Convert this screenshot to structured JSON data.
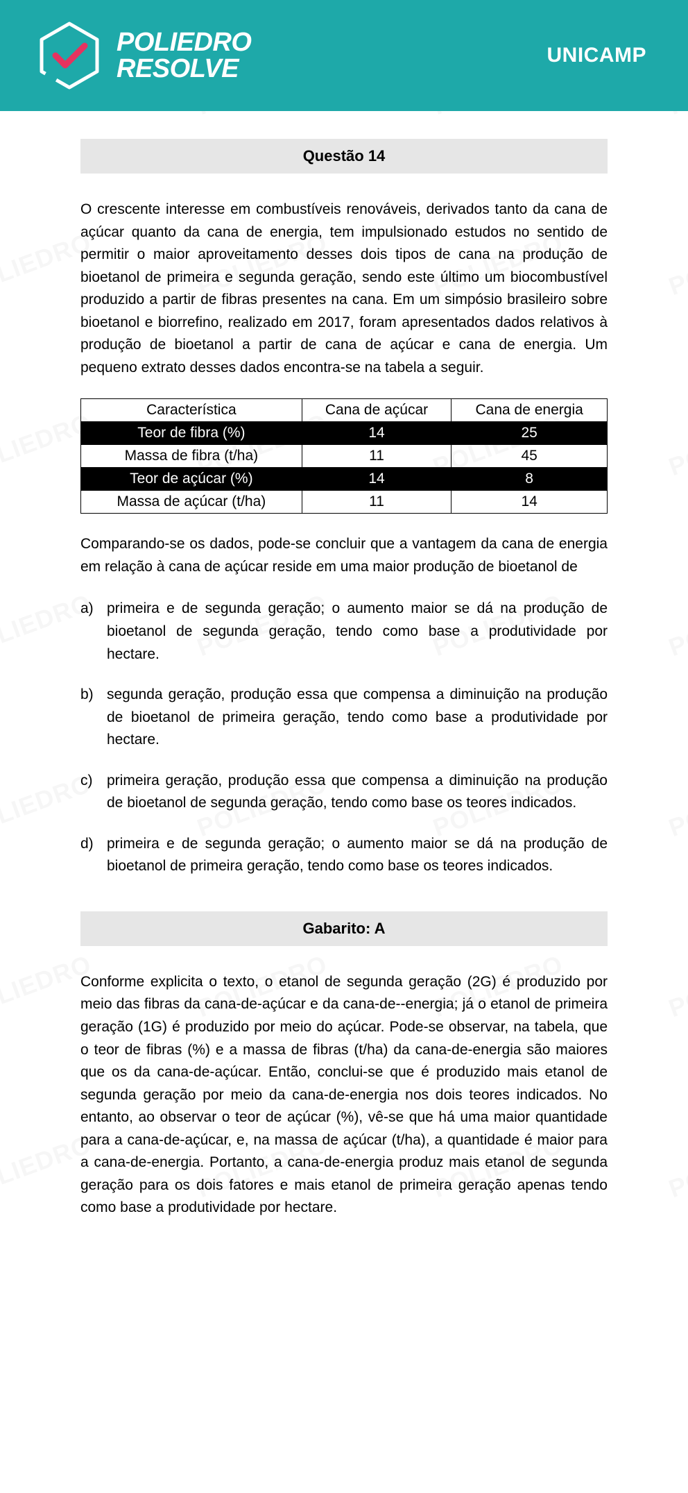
{
  "header": {
    "brand_line1": "POLIEDRO",
    "brand_line2": "RESOLVE",
    "exam": "UNICAMP",
    "header_bg": "#1ea9a9",
    "check_color": "#e6335f"
  },
  "watermark_text": "POLIEDRO",
  "question": {
    "title": "Questão 14",
    "intro": "O crescente interesse em combustíveis renováveis, derivados tanto da cana de açúcar quanto da cana de energia, tem impulsionado estudos no sentido de permitir o maior aproveitamento desses dois tipos de cana na produção de bioetanol de primeira e segunda geração, sendo este último um biocombustível produzido a partir de fibras presentes na cana. Em um simpósio brasileiro sobre bioetanol e biorrefino, realizado em 2017, foram apresentados dados relativos à produção de bioetanol a partir de cana de açúcar e cana de energia. Um pequeno extrato desses dados encontra-se na tabela a seguir.",
    "table": {
      "headers": [
        "Característica",
        "Cana de açúcar",
        "Cana de energia"
      ],
      "rows": [
        {
          "label": "Teor de fibra (%)",
          "a": "14",
          "b": "25",
          "inverse": true
        },
        {
          "label": "Massa de fibra (t/ha)",
          "a": "11",
          "b": "45",
          "inverse": false
        },
        {
          "label": "Teor de açúcar (%)",
          "a": "14",
          "b": "8",
          "inverse": true
        },
        {
          "label": "Massa de açúcar (t/ha)",
          "a": "11",
          "b": "14",
          "inverse": false
        }
      ]
    },
    "stem": "Comparando-se os dados, pode-se concluir que a vantagem da cana de energia em relação à cana de açúcar reside em uma maior produção de bioetanol de",
    "alts": [
      {
        "label": "a)",
        "text": "primeira e de segunda geração; o aumento maior se dá na produção de bioetanol de segunda geração, tendo como base a produtividade por hectare."
      },
      {
        "label": "b)",
        "text": "segunda geração, produção essa que compensa a diminuição na produção de bioetanol de primeira geração, tendo como base a produtividade por hectare."
      },
      {
        "label": "c)",
        "text": "primeira geração, produção essa que compensa a diminuição na produção de bioetanol de segunda geração, tendo como base os teores indicados."
      },
      {
        "label": "d)",
        "text": "primeira e de segunda geração; o aumento maior se dá na produção de bioetanol de primeira geração, tendo como base os teores indicados."
      }
    ]
  },
  "answer": {
    "title": "Gabarito: A",
    "explanation": "Conforme explicita o texto, o etanol de segunda geração (2G) é produzido por meio das fibras da cana-de-açúcar e da cana-de--energia; já o etanol de primeira geração (1G) é produzido por meio do açúcar. Pode-se observar, na tabela, que o teor de fibras (%) e a massa de fibras (t/ha) da cana-de-energia são maiores que os da cana-de-açúcar. Então, conclui-se que é produzido mais etanol de segunda geração por meio da cana-de-energia nos dois teores indicados. No entanto, ao observar o teor de açúcar (%), vê-se que há uma maior quantidade para a cana-de-açúcar, e, na massa de açúcar (t/ha), a quantidade é maior para a cana-de-energia. Portanto, a cana-de-energia produz mais etanol de segunda geração para os dois fatores e mais etanol de primeira geração apenas tendo como base a produtividade por hectare."
  }
}
